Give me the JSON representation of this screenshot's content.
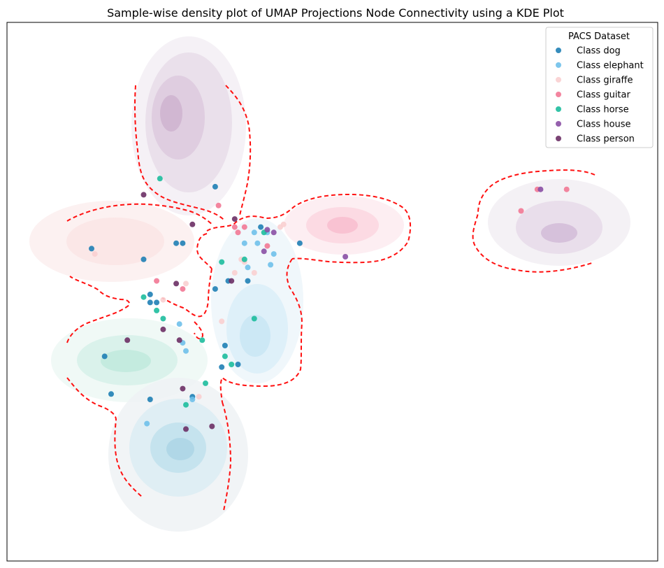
{
  "chart_data": {
    "type": "scatter",
    "title": "Sample-wise density plot of UMAP Projections Node Connectivity using a KDE Plot",
    "xlabel": "",
    "ylabel": "",
    "xlim": [
      0,
      100
    ],
    "ylim": [
      0,
      100
    ],
    "ticks_visible": false,
    "grid": false,
    "overlay": "kde-density-contours",
    "boundary_style": "red-dashed",
    "legend": {
      "title": "PACS Dataset",
      "placement": "top-right"
    },
    "series": [
      {
        "name": "Class dog",
        "color": "#1f7fb5",
        "points": [
          [
            13,
            58
          ],
          [
            21,
            56
          ],
          [
            26,
            59
          ],
          [
            27,
            59
          ],
          [
            32,
            50.5
          ],
          [
            34,
            52
          ],
          [
            37,
            52
          ],
          [
            39,
            62
          ],
          [
            45,
            59
          ],
          [
            22,
            48
          ],
          [
            22,
            49.5
          ],
          [
            23,
            48
          ],
          [
            15,
            38
          ],
          [
            22,
            30
          ],
          [
            33.5,
            40
          ],
          [
            35.5,
            36.5
          ],
          [
            33,
            36
          ],
          [
            16,
            31
          ],
          [
            28.5,
            30.5
          ],
          [
            32,
            69.5
          ]
        ]
      },
      {
        "name": "Class elephant",
        "color": "#6fc0ea",
        "points": [
          [
            36.5,
            59
          ],
          [
            38.5,
            59
          ],
          [
            40,
            61
          ],
          [
            38,
            61
          ],
          [
            26.5,
            44
          ],
          [
            27,
            40.5
          ],
          [
            27.5,
            39
          ],
          [
            40.5,
            55
          ],
          [
            41,
            57
          ],
          [
            21.5,
            25.5
          ],
          [
            28.5,
            30
          ],
          [
            37,
            54.5
          ]
        ]
      },
      {
        "name": "Class giraffe",
        "color": "#f9cfd0",
        "points": [
          [
            13.5,
            57
          ],
          [
            35,
            53.5
          ],
          [
            36,
            56
          ],
          [
            38,
            53.5
          ],
          [
            42,
            62
          ],
          [
            42.5,
            62.5
          ],
          [
            33,
            44.5
          ],
          [
            29.5,
            30.5
          ],
          [
            24,
            48.5
          ],
          [
            27.5,
            51.5
          ],
          [
            36.5,
            55.5
          ]
        ]
      },
      {
        "name": "Class guitar",
        "color": "#f27895",
        "points": [
          [
            32.5,
            66
          ],
          [
            35,
            62
          ],
          [
            35.5,
            61
          ],
          [
            36.5,
            62
          ],
          [
            40,
            58.5
          ],
          [
            23,
            52
          ],
          [
            27,
            50.5
          ],
          [
            79,
            65
          ],
          [
            81.5,
            69
          ],
          [
            86,
            69
          ]
        ]
      },
      {
        "name": "Class horse",
        "color": "#1dbd9d",
        "points": [
          [
            23.5,
            71
          ],
          [
            33,
            55.5
          ],
          [
            36.5,
            56
          ],
          [
            39.5,
            61
          ],
          [
            21,
            49
          ],
          [
            23,
            46.5
          ],
          [
            24,
            45
          ],
          [
            38,
            45
          ],
          [
            30,
            41
          ],
          [
            33.5,
            38
          ],
          [
            34.5,
            36.5
          ],
          [
            30.5,
            33
          ],
          [
            27.5,
            29
          ]
        ]
      },
      {
        "name": "Class house",
        "color": "#8a4fa4",
        "points": [
          [
            40,
            61.5
          ],
          [
            41,
            61
          ],
          [
            39.5,
            57.5
          ],
          [
            52,
            56.5
          ],
          [
            82,
            69
          ]
        ]
      },
      {
        "name": "Class person",
        "color": "#6b2f65",
        "points": [
          [
            21,
            68
          ],
          [
            28.5,
            62.5
          ],
          [
            35,
            63.5
          ],
          [
            26,
            51.5
          ],
          [
            34.5,
            52
          ],
          [
            18.5,
            41
          ],
          [
            24,
            43
          ],
          [
            26.5,
            41
          ],
          [
            27,
            32
          ],
          [
            27.5,
            24.5
          ],
          [
            31.5,
            25
          ]
        ]
      }
    ]
  }
}
